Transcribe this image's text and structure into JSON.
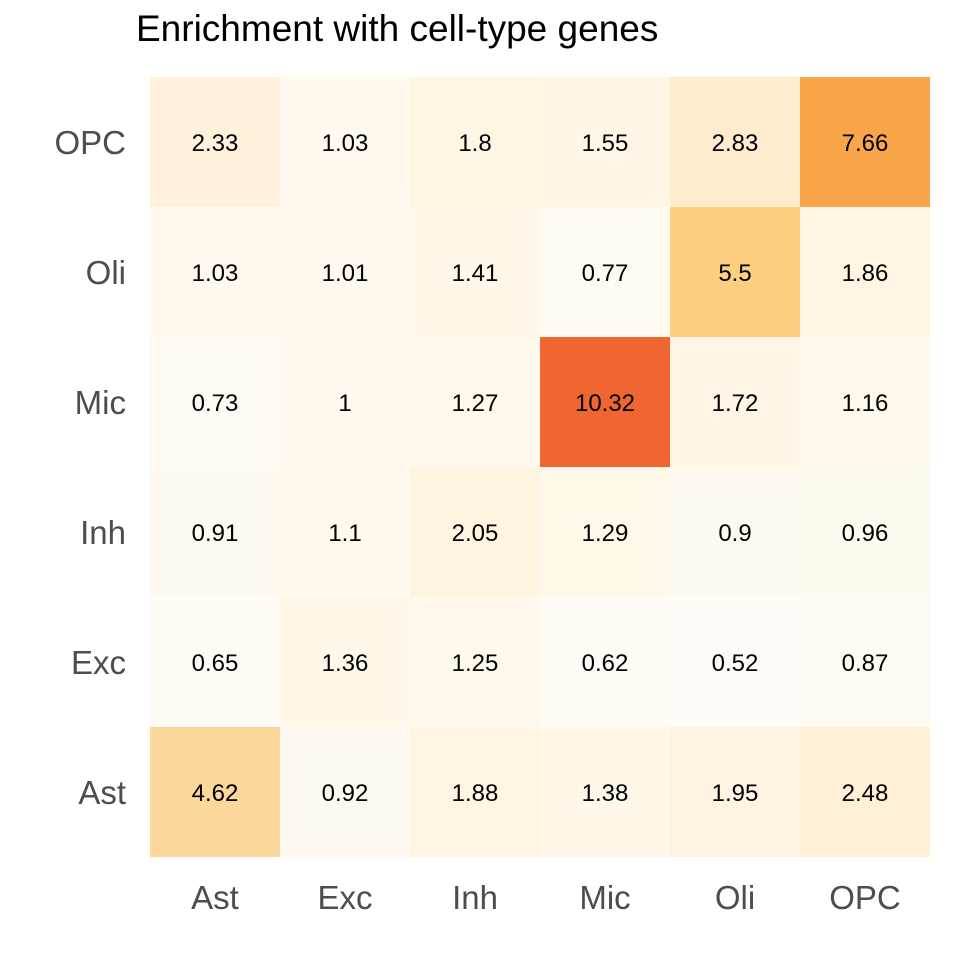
{
  "chart_data": {
    "type": "heatmap",
    "title": "Enrichment with cell-type genes",
    "xlabel": "",
    "ylabel": "",
    "x_categories": [
      "Ast",
      "Exc",
      "Inh",
      "Mic",
      "Oli",
      "OPC"
    ],
    "y_categories": [
      "OPC",
      "Oli",
      "Mic",
      "Inh",
      "Exc",
      "Ast"
    ],
    "values": [
      [
        2.33,
        1.03,
        1.8,
        1.55,
        2.83,
        7.66
      ],
      [
        1.03,
        1.01,
        1.41,
        0.77,
        5.5,
        1.86
      ],
      [
        0.73,
        1,
        1.27,
        10.32,
        1.72,
        1.16
      ],
      [
        0.91,
        1.1,
        2.05,
        1.29,
        0.9,
        0.96
      ],
      [
        0.65,
        1.36,
        1.25,
        0.62,
        0.52,
        0.87
      ],
      [
        4.62,
        0.92,
        1.88,
        1.38,
        1.95,
        2.48
      ]
    ],
    "value_labels": [
      [
        "2.33",
        "1.03",
        "1.8",
        "1.55",
        "2.83",
        "7.66"
      ],
      [
        "1.03",
        "1.01",
        "1.41",
        "0.77",
        "5.5",
        "1.86"
      ],
      [
        "0.73",
        "1",
        "1.27",
        "10.32",
        "1.72",
        "1.16"
      ],
      [
        "0.91",
        "1.1",
        "2.05",
        "1.29",
        "0.9",
        "0.96"
      ],
      [
        "0.65",
        "1.36",
        "1.25",
        "0.62",
        "0.52",
        "0.87"
      ],
      [
        "4.62",
        "0.92",
        "1.88",
        "1.38",
        "1.95",
        "2.48"
      ]
    ],
    "color_scale": [
      "#fffcf7",
      "#fff3de",
      "#fee2b8",
      "#fdcf82",
      "#fbb151",
      "#f5913c",
      "#f06630"
    ],
    "legend": "none",
    "grid": false
  }
}
